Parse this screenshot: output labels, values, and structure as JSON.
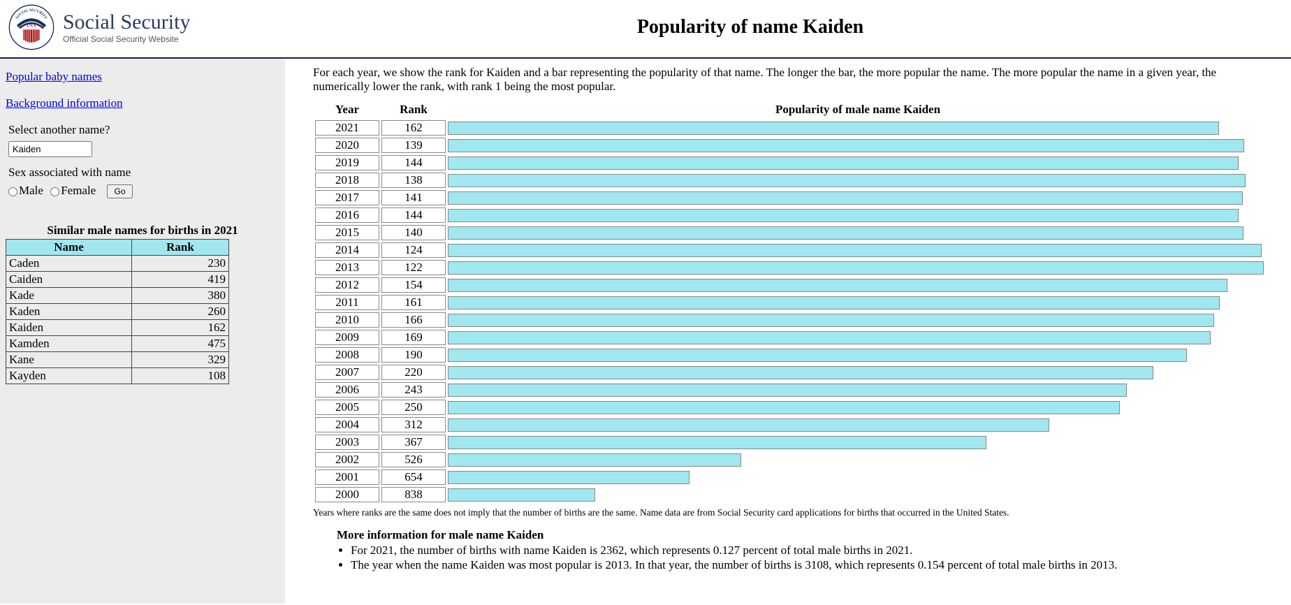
{
  "header": {
    "site_name": "Social Security",
    "site_sub": "Official Social Security Website",
    "page_title": "Popularity of name Kaiden"
  },
  "sidebar": {
    "link_popular": "Popular baby names",
    "link_background": "Background information",
    "select_label": "Select another name?",
    "name_value": "Kaiden",
    "sex_label": "Sex associated with name",
    "male_label": "Male",
    "female_label": "Female",
    "go_label": "Go",
    "similar_title": "Similar male names for births in 2021",
    "col_name": "Name",
    "col_rank": "Rank",
    "similar": [
      {
        "name": "Caden",
        "rank": 230
      },
      {
        "name": "Caiden",
        "rank": 419
      },
      {
        "name": "Kade",
        "rank": 380
      },
      {
        "name": "Kaden",
        "rank": 260
      },
      {
        "name": "Kaiden",
        "rank": 162
      },
      {
        "name": "Kamden",
        "rank": 475
      },
      {
        "name": "Kane",
        "rank": 329
      },
      {
        "name": "Kayden",
        "rank": 108
      }
    ]
  },
  "main": {
    "intro": "For each year, we show the rank for Kaiden and a bar representing the popularity of that name. The longer the bar, the more popular the name. The more popular the name in a given year, the numerically lower the rank, with rank 1 being the most popular.",
    "col_year": "Year",
    "col_rank": "Rank",
    "col_bar": "Popularity of male name Kaiden",
    "bar_color": "#a0e7f0",
    "rows": [
      {
        "year": 2021,
        "rank": 162,
        "pct": 94.0
      },
      {
        "year": 2020,
        "rank": 139,
        "pct": 97.1
      },
      {
        "year": 2019,
        "rank": 144,
        "pct": 96.4
      },
      {
        "year": 2018,
        "rank": 138,
        "pct": 97.3
      },
      {
        "year": 2017,
        "rank": 141,
        "pct": 96.9
      },
      {
        "year": 2016,
        "rank": 144,
        "pct": 96.4
      },
      {
        "year": 2015,
        "rank": 140,
        "pct": 97.0
      },
      {
        "year": 2014,
        "rank": 124,
        "pct": 99.2
      },
      {
        "year": 2013,
        "rank": 122,
        "pct": 99.5
      },
      {
        "year": 2012,
        "rank": 154,
        "pct": 95.1
      },
      {
        "year": 2011,
        "rank": 161,
        "pct": 94.1
      },
      {
        "year": 2010,
        "rank": 166,
        "pct": 93.4
      },
      {
        "year": 2009,
        "rank": 169,
        "pct": 93.0
      },
      {
        "year": 2008,
        "rank": 190,
        "pct": 90.1
      },
      {
        "year": 2007,
        "rank": 220,
        "pct": 86.0
      },
      {
        "year": 2006,
        "rank": 243,
        "pct": 82.8
      },
      {
        "year": 2005,
        "rank": 250,
        "pct": 81.9
      },
      {
        "year": 2004,
        "rank": 312,
        "pct": 73.3
      },
      {
        "year": 2003,
        "rank": 367,
        "pct": 65.7
      },
      {
        "year": 2002,
        "rank": 526,
        "pct": 35.8
      },
      {
        "year": 2001,
        "rank": 654,
        "pct": 29.5
      },
      {
        "year": 2000,
        "rank": 838,
        "pct": 18.0
      }
    ],
    "footnote": "Years where ranks are the same does not imply that the number of births are the same. Name data are from Social Security card applications for births that occurred in the United States.",
    "more_title": "More information for male name Kaiden",
    "more1": "For 2021, the number of births with name Kaiden is 2362, which represents 0.127 percent of total male births in 2021.",
    "more2": "The year when the name Kaiden was most popular is 2013. In that year, the number of births is 3108, which represents 0.154 percent of total male births in 2013."
  }
}
